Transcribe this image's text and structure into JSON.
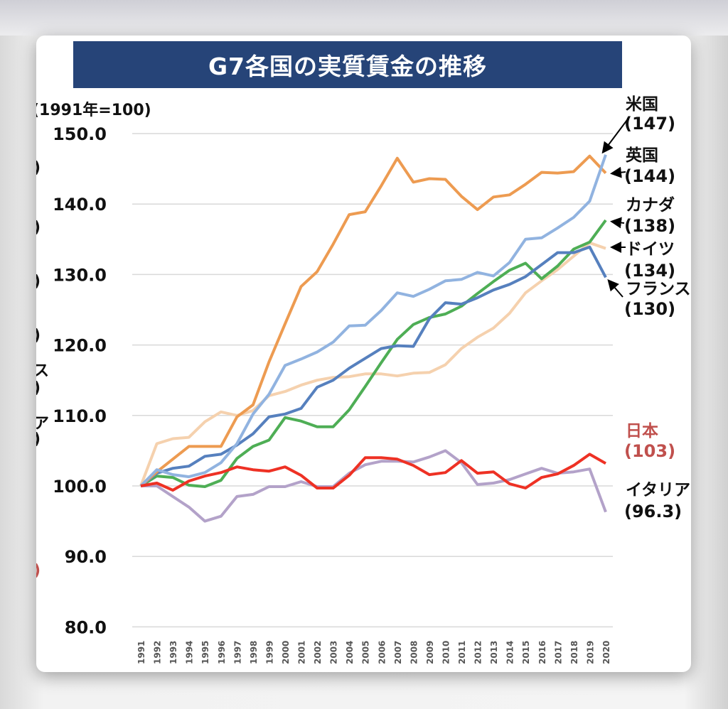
{
  "title": "G7各国の実質賃金の推移",
  "left_fragments": [
    ")",
    ")",
    ")",
    ")",
    "ス",
    ")",
    "ア",
    ")",
    ")"
  ],
  "chart_data": {
    "type": "line",
    "title": "G7各国の実質賃金の推移",
    "ylabel": "(1991年=100)",
    "xlabel": "",
    "ylim": [
      80,
      150
    ],
    "yticks": [
      "80.0",
      "90.0",
      "100.0",
      "110.0",
      "120.0",
      "130.0",
      "140.0",
      "150.0"
    ],
    "grid": true,
    "x": [
      "1991",
      "1992",
      "1993",
      "1994",
      "1995",
      "1996",
      "1997",
      "1998",
      "1999",
      "2000",
      "2001",
      "2002",
      "2003",
      "2004",
      "2005",
      "2006",
      "2007",
      "2008",
      "2009",
      "2010",
      "2011",
      "2012",
      "2013",
      "2014",
      "2015",
      "2016",
      "2017",
      "2018",
      "2019",
      "2020"
    ],
    "series": [
      {
        "name": "ドイツ",
        "label": "(134)",
        "color": "#F5D1AE",
        "values": [
          100,
          106,
          106.7,
          106.9,
          109.1,
          110.5,
          110,
          110.7,
          112.8,
          113.4,
          114.3,
          115,
          115.4,
          115.5,
          115.9,
          115.9,
          115.6,
          116,
          116.1,
          117.2,
          119.5,
          121.1,
          122.4,
          124.5,
          127.4,
          129.1,
          130.7,
          132.6,
          134.5,
          133.7
        ]
      },
      {
        "name": "イタリア",
        "label": "(96.3)",
        "color": "#B3A2C9",
        "values": [
          100,
          100,
          98.5,
          97,
          95,
          95.7,
          98.5,
          98.8,
          99.9,
          99.9,
          100.6,
          99.9,
          99.9,
          101.8,
          103,
          103.5,
          103.5,
          103.4,
          104.1,
          105,
          103.3,
          100.2,
          100.4,
          100.9,
          101.7,
          102.5,
          101.8,
          102,
          102.4,
          96.3
        ]
      },
      {
        "name": "カナダ",
        "label": "(138)",
        "color": "#4EAE55",
        "values": [
          100,
          101.4,
          101.2,
          100.1,
          99.9,
          100.8,
          103.9,
          105.6,
          106.5,
          109.7,
          109.2,
          108.4,
          108.4,
          110.8,
          114.1,
          117.5,
          120.8,
          122.9,
          123.9,
          124.4,
          125.5,
          127.3,
          129,
          130.6,
          131.6,
          129.4,
          131.2,
          133.6,
          134.6,
          137.7
        ]
      },
      {
        "name": "フランス",
        "label": "(130)",
        "color": "#5680BE",
        "values": [
          100,
          101.8,
          102.5,
          102.8,
          104.2,
          104.5,
          105.8,
          107.4,
          109.8,
          110.2,
          111,
          114,
          115,
          116.7,
          118.1,
          119.5,
          119.9,
          119.8,
          123.7,
          126,
          125.8,
          126.7,
          127.8,
          128.6,
          129.7,
          131.4,
          133.1,
          133.1,
          133.9,
          129.6
        ]
      },
      {
        "name": "英国",
        "label": "(144)",
        "color": "#ED9B51",
        "values": [
          100,
          102,
          103.8,
          105.6,
          105.6,
          105.6,
          109.8,
          111.5,
          117.6,
          123,
          128.3,
          130.4,
          134.3,
          138.5,
          138.9,
          142.6,
          146.5,
          143.1,
          143.6,
          143.5,
          141.1,
          139.2,
          141,
          141.3,
          142.8,
          144.5,
          144.4,
          144.6,
          146.8,
          144.4
        ]
      },
      {
        "name": "米国",
        "label": "(147)",
        "color": "#91B3E0",
        "values": [
          100,
          102.3,
          101.6,
          101.3,
          101.9,
          103.3,
          106,
          110.2,
          113,
          117.1,
          118,
          119,
          120.4,
          122.7,
          122.8,
          124.9,
          127.4,
          126.9,
          127.9,
          129.1,
          129.3,
          130.3,
          129.8,
          131.7,
          135,
          135.2,
          136.6,
          138.1,
          140.4,
          147
        ]
      },
      {
        "name": "日本",
        "label": "(103)",
        "color": "#EE3124",
        "label_color": "#C0504D",
        "values": [
          100,
          100.4,
          99.4,
          100.7,
          101.4,
          101.9,
          102.7,
          102.3,
          102.1,
          102.7,
          101.5,
          99.7,
          99.7,
          101.5,
          104,
          104,
          103.8,
          102.9,
          101.6,
          101.9,
          103.6,
          101.8,
          102,
          100.3,
          99.7,
          101.2,
          101.7,
          102.9,
          104.5,
          103.2
        ]
      }
    ]
  }
}
